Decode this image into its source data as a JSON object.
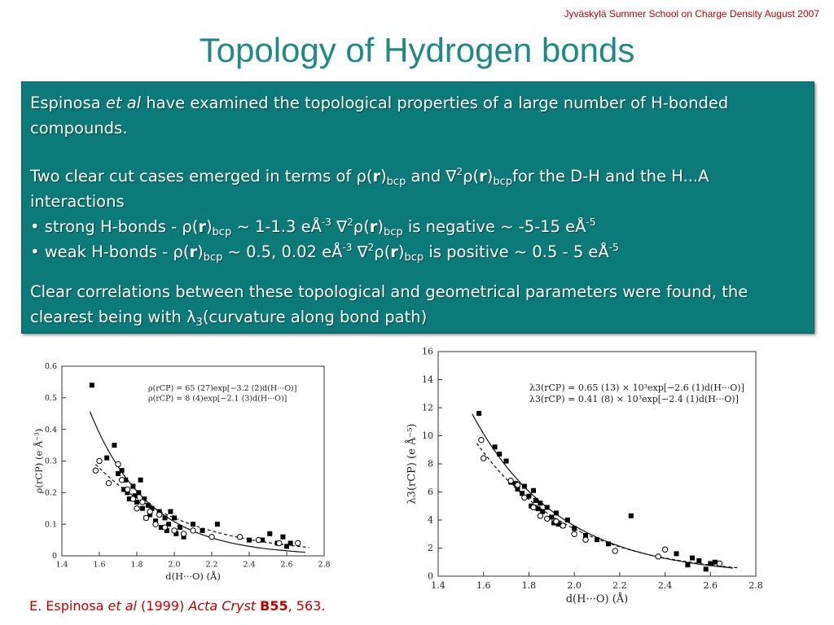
{
  "header": {
    "note": "Jyväskylä Summer School  on Charge Density August 2007",
    "title": "Topology of Hydrogen bonds"
  },
  "box": {
    "p1_a": "Espinosa ",
    "p1_etal": "et al",
    "p1_b": " have examined the topological properties of a large number of H-bonded compounds.",
    "p2_a": "Two clear cut cases emerged in terms of ",
    "rho": "ρ",
    "nabla": "∇",
    "two": "2",
    "lp": "(",
    "r": "r",
    "rp": ")",
    "bcp": "bcp",
    "and": " and ",
    "p2_b": "for the D-H and the H...A interactions",
    "b1_a": "• strong H-bonds  -  ",
    "b1_b": "  ~ 1-1.3 eÅ",
    "b1_c": " is negative ~ -5-15 eÅ",
    "b2_a": "• weak H-bonds  - ",
    "b2_b": "  ~ 0.5, 0.02 eÅ",
    "b2_c": " is positive ~ 0.5 - 5 eÅ",
    "exp3": "-3",
    "exp5": "-5",
    "p3_a": "Clear correlations between these topological and geometrical parameters were found, the clearest being with ",
    "lambda": "λ",
    "three": "3",
    "p3_b": "(curvature along bond path)"
  },
  "citation": {
    "author": "E. Espinosa ",
    "etal": "et al",
    "year": " (1999) ",
    "journal": "Acta Cryst",
    "volume": "B55",
    "pages": ", 563."
  },
  "chart_data": [
    {
      "type": "scatter",
      "xlabel": "d(H···O) (Å)",
      "ylabel": "ρ(rCP) (e Å⁻³)",
      "xlim": [
        1.4,
        2.8
      ],
      "ylim": [
        0,
        0.6
      ],
      "xticks": [
        "1.4",
        "1.6",
        "1.8",
        "2.0",
        "2.2",
        "2.4",
        "2.6",
        "2.8"
      ],
      "yticks": [
        "0",
        "0.1",
        "0.2",
        "0.3",
        "0.4",
        "0.5",
        "0.6"
      ],
      "annotations": [
        "ρ(rCP) = 65 (27)exp[−3.2 (2)d(H···O)]",
        "ρ(rCP) =  8 (4)exp[−2.1 (3)d(H···O)]"
      ],
      "series": [
        {
          "marker": "filled-square",
          "x": [
            1.56,
            1.64,
            1.68,
            1.7,
            1.72,
            1.73,
            1.74,
            1.75,
            1.76,
            1.78,
            1.79,
            1.8,
            1.81,
            1.82,
            1.83,
            1.84,
            1.85,
            1.86,
            1.87,
            1.88,
            1.9,
            1.92,
            1.93,
            1.95,
            1.96,
            1.97,
            1.98,
            2.0,
            2.01,
            2.03,
            2.05,
            2.1,
            2.15,
            2.23,
            2.4,
            2.47,
            2.51,
            2.55,
            2.58,
            2.6,
            2.62
          ],
          "y": [
            0.54,
            0.31,
            0.35,
            0.26,
            0.27,
            0.21,
            0.24,
            0.2,
            0.18,
            0.22,
            0.19,
            0.17,
            0.2,
            0.24,
            0.15,
            0.18,
            0.12,
            0.16,
            0.13,
            0.15,
            0.11,
            0.14,
            0.09,
            0.12,
            0.08,
            0.1,
            0.14,
            0.12,
            0.07,
            0.09,
            0.06,
            0.1,
            0.08,
            0.1,
            0.05,
            0.05,
            0.07,
            0.04,
            0.06,
            0.03,
            0.04
          ]
        },
        {
          "marker": "open-circle",
          "x": [
            1.58,
            1.6,
            1.65,
            1.7,
            1.72,
            1.75,
            1.78,
            1.8,
            1.83,
            1.85,
            1.87,
            1.9,
            1.92,
            1.95,
            2.0,
            2.05,
            2.1,
            2.2,
            2.35,
            2.45,
            2.56,
            2.66
          ],
          "y": [
            0.27,
            0.3,
            0.23,
            0.29,
            0.24,
            0.21,
            0.18,
            0.15,
            0.17,
            0.12,
            0.14,
            0.1,
            0.13,
            0.09,
            0.08,
            0.07,
            0.08,
            0.06,
            0.06,
            0.05,
            0.04,
            0.04
          ]
        }
      ]
    },
    {
      "type": "scatter",
      "xlabel": "d(H···O) (Å)",
      "ylabel": "λ3(rCP) (e Å⁻⁵)",
      "xlim": [
        1.4,
        2.8
      ],
      "ylim": [
        0,
        16
      ],
      "xticks": [
        "1.4",
        "1.6",
        "1.8",
        "2.0",
        "2.2",
        "2.4",
        "2.6",
        "2.8"
      ],
      "yticks": [
        "0",
        "2",
        "4",
        "6",
        "8",
        "10",
        "12",
        "14",
        "16"
      ],
      "annotations": [
        "λ3(rCP) = 0.65 (13) × 10³exp[−2.6 (1)d(H···O)]",
        "λ3(rCP) = 0.41 (8) × 10³exp[−2.4 (1)d(H···O)]"
      ],
      "series": [
        {
          "marker": "filled-square",
          "x": [
            1.58,
            1.65,
            1.67,
            1.7,
            1.72,
            1.74,
            1.75,
            1.77,
            1.78,
            1.8,
            1.81,
            1.82,
            1.83,
            1.84,
            1.85,
            1.86,
            1.88,
            1.9,
            1.91,
            1.92,
            1.93,
            1.95,
            1.97,
            2.0,
            2.05,
            2.1,
            2.15,
            2.25,
            2.45,
            2.5,
            2.52,
            2.55,
            2.58,
            2.6,
            2.62
          ],
          "y": [
            11.6,
            9.2,
            8.7,
            8.2,
            6.7,
            6.6,
            6.2,
            5.9,
            6.4,
            5.7,
            5.0,
            6.1,
            5.4,
            4.8,
            5.2,
            4.6,
            4.9,
            4.2,
            3.8,
            4.5,
            3.7,
            3.6,
            4.0,
            3.4,
            2.9,
            2.6,
            2.3,
            4.3,
            1.6,
            0.8,
            1.3,
            1.1,
            0.5,
            0.9,
            1.0
          ]
        },
        {
          "marker": "open-circle",
          "x": [
            1.59,
            1.6,
            1.72,
            1.75,
            1.78,
            1.82,
            1.85,
            1.88,
            1.92,
            1.95,
            2.0,
            2.05,
            2.18,
            2.37,
            2.4,
            2.64
          ],
          "y": [
            9.7,
            8.4,
            6.8,
            6.5,
            5.6,
            4.9,
            4.3,
            4.1,
            3.9,
            3.6,
            3.0,
            2.6,
            1.8,
            1.4,
            1.9,
            0.9
          ]
        }
      ]
    }
  ]
}
